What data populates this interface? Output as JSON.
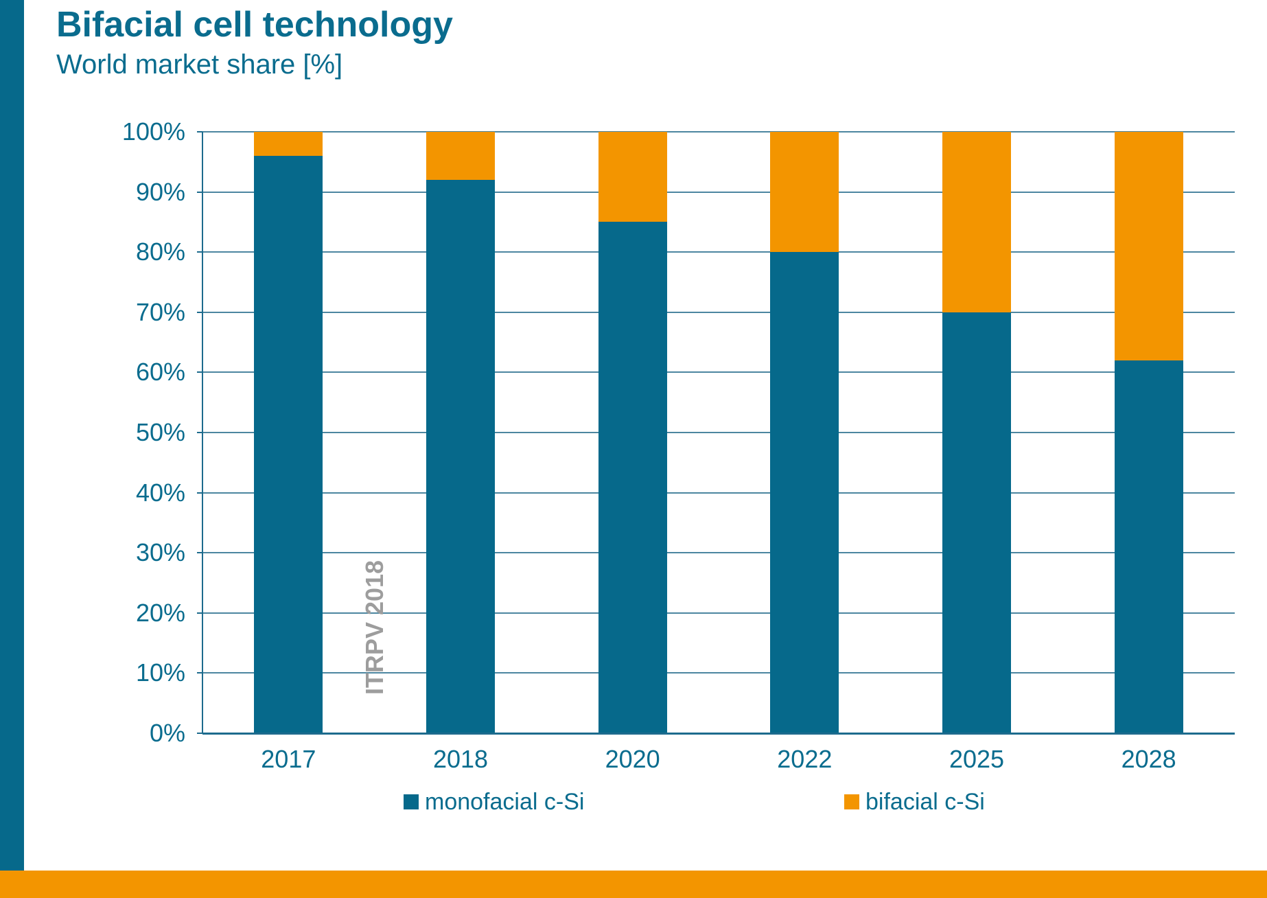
{
  "page": {
    "title": "Bifacial cell technology",
    "subtitle": "World market share [%]"
  },
  "colors": {
    "teal": "#06698B",
    "orange": "#F39500",
    "grid": "#4C86A0",
    "axis": "#1D6B8D",
    "annotation_gray": "#9D9D9D",
    "text_teal": "#0A6C8E"
  },
  "chart_data": {
    "type": "bar",
    "stacked": true,
    "title": "Bifacial cell technology",
    "subtitle": "World market share [%]",
    "categories": [
      "2017",
      "2018",
      "2020",
      "2022",
      "2025",
      "2028"
    ],
    "series": [
      {
        "name": "monofacial c-Si",
        "color": "#06698B",
        "values": [
          96,
          92,
          85,
          80,
          70,
          62
        ]
      },
      {
        "name": "bifacial c-Si",
        "color": "#F39500",
        "values": [
          4,
          8,
          15,
          20,
          30,
          38
        ]
      }
    ],
    "unit": "%",
    "ylim": [
      0,
      100
    ],
    "y_tick_step": 10,
    "y_tick_labels": [
      "0%",
      "10%",
      "20%",
      "30%",
      "40%",
      "50%",
      "60%",
      "70%",
      "80%",
      "90%",
      "100%"
    ],
    "grid": true,
    "legend_position": "bottom",
    "annotation": "ITRPV 2018"
  }
}
